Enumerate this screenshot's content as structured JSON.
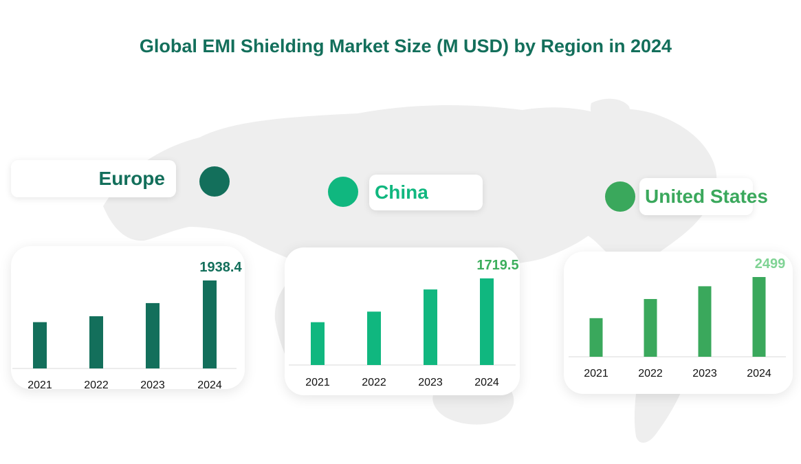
{
  "title": "Global EMI Shielding Market Size (M USD) by Region in 2024",
  "colors": {
    "title": "#136f5b",
    "map": "#eeeeee"
  },
  "chart_data": [
    {
      "type": "bar",
      "region": "Europe",
      "color": "#136f5b",
      "label_color": "#136f5b",
      "categories": [
        "2021",
        "2022",
        "2023",
        "2024"
      ],
      "values": [
        1020,
        1150,
        1440,
        1938.4
      ],
      "value_labels": [
        "",
        "",
        "",
        "1938.4"
      ],
      "ylim": [
        0,
        2100
      ]
    },
    {
      "type": "bar",
      "region": "China",
      "color": "#10b77f",
      "label_color": "#3cae5c",
      "categories": [
        "2021",
        "2022",
        "2023",
        "2024"
      ],
      "values": [
        850,
        1060,
        1500,
        1719.5
      ],
      "value_labels": [
        "",
        "",
        "",
        "1719.5"
      ],
      "ylim": [
        0,
        1950
      ]
    },
    {
      "type": "bar",
      "region": "United States",
      "color": "#3aa85c",
      "label_color": "#7fd394",
      "categories": [
        "2021",
        "2022",
        "2023",
        "2024"
      ],
      "values": [
        1210,
        1810,
        2210,
        2499
      ],
      "value_labels": [
        "",
        "",
        "",
        "2499"
      ],
      "ylim": [
        0,
        2700
      ]
    }
  ]
}
